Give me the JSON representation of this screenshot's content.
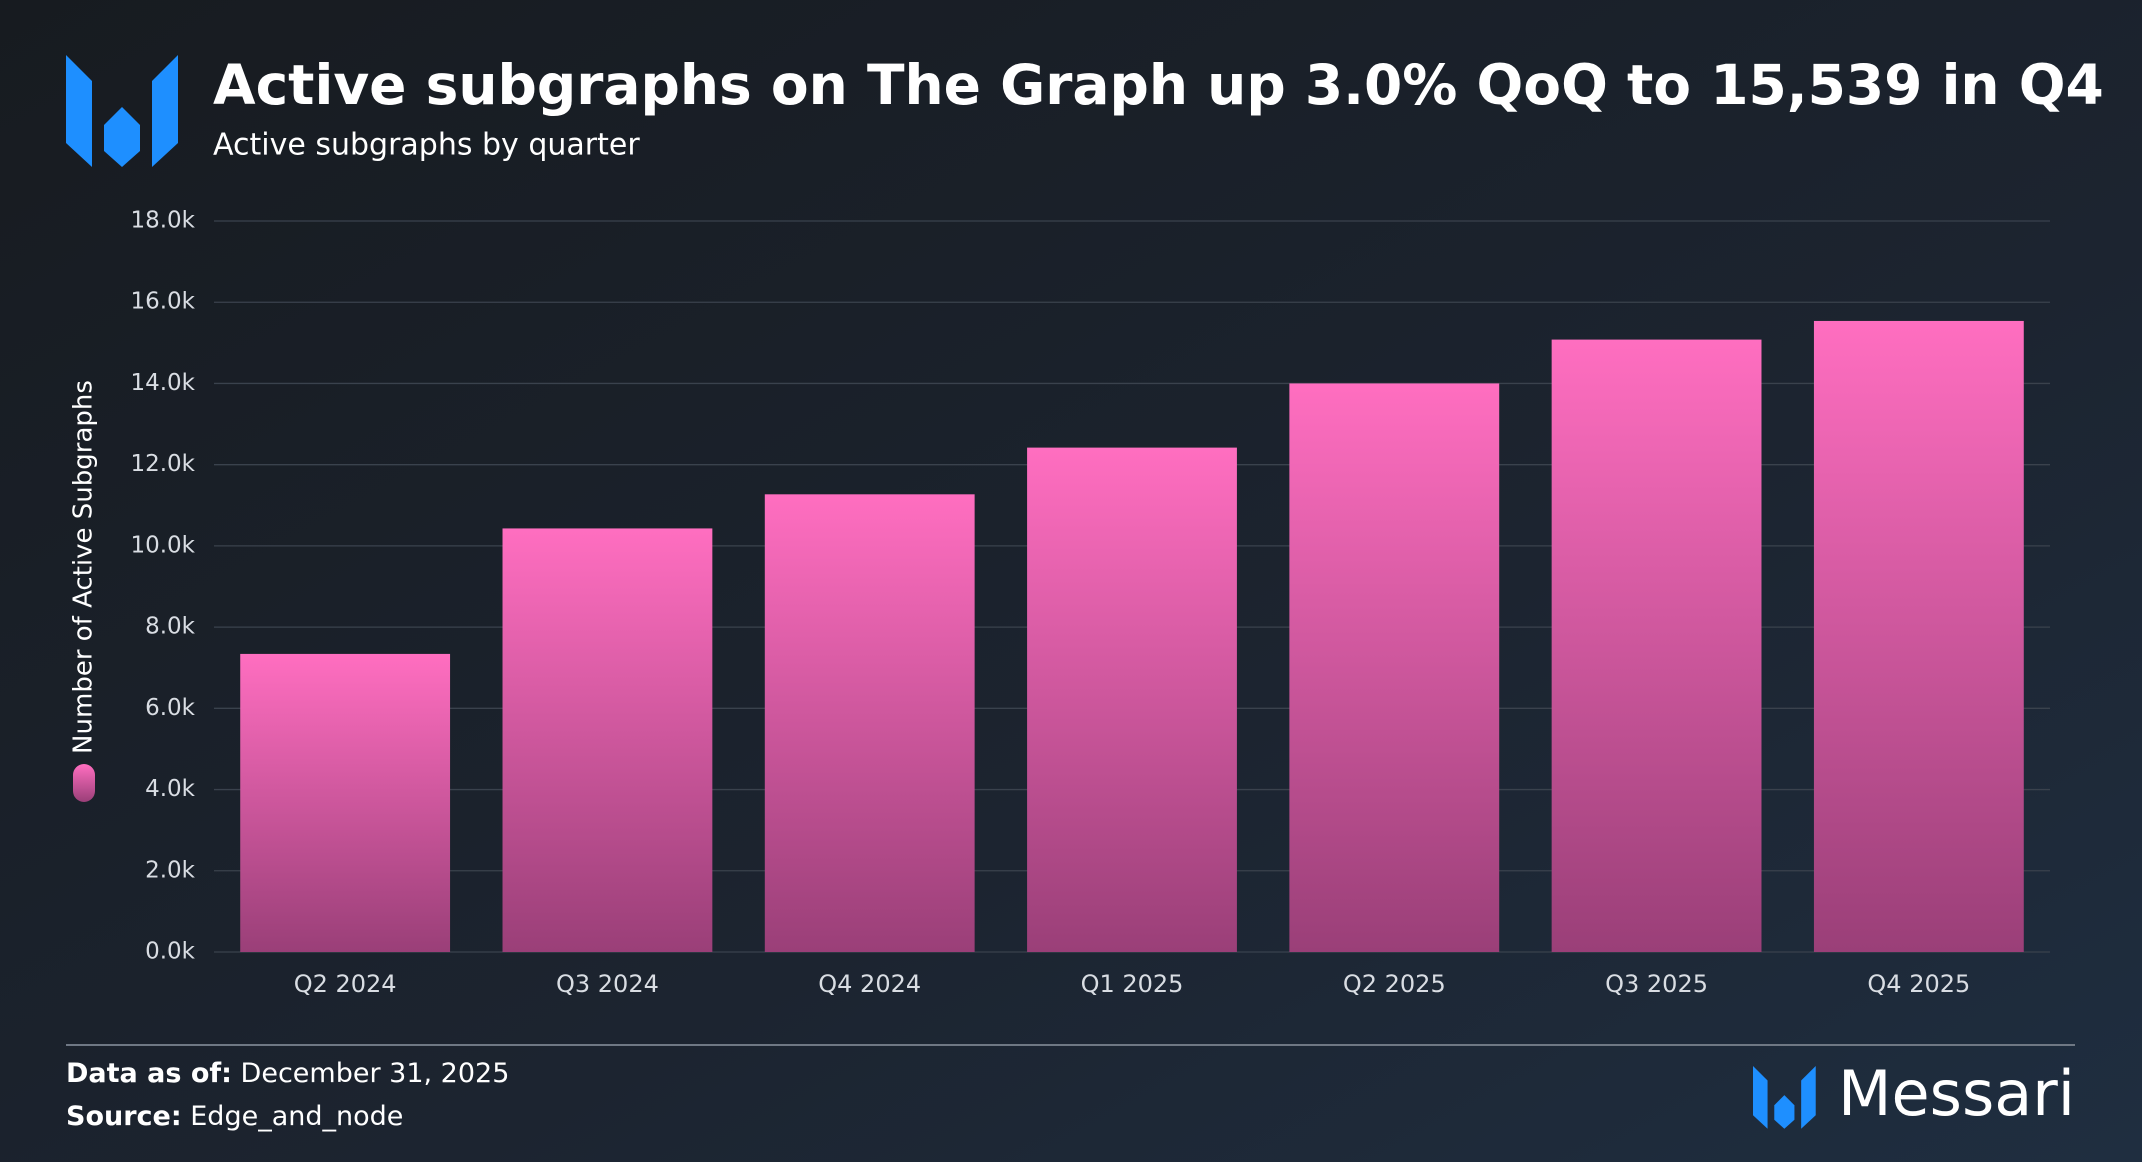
{
  "chart_data": {
    "type": "bar",
    "title": "Active subgraphs on The Graph up 3.0% QoQ to 15,539 in Q4",
    "subtitle": "Active subgraphs by quarter",
    "ylabel": "Number of Active Subgraphs",
    "categories": [
      "Q2 2024",
      "Q3 2024",
      "Q4 2024",
      "Q1 2025",
      "Q2 2025",
      "Q3 2025",
      "Q4 2025"
    ],
    "values": [
      7340,
      10430,
      11270,
      12420,
      14000,
      15080,
      15539
    ],
    "color": "#ff6ec0",
    "ylim": [
      0,
      18000
    ],
    "yticks": [
      {
        "value": 0,
        "label": "0.0k"
      },
      {
        "value": 2000,
        "label": "2.0k"
      },
      {
        "value": 4000,
        "label": "4.0k"
      },
      {
        "value": 6000,
        "label": "6.0k"
      },
      {
        "value": 8000,
        "label": "8.0k"
      },
      {
        "value": 10000,
        "label": "10.0k"
      },
      {
        "value": 12000,
        "label": "12.0k"
      },
      {
        "value": 14000,
        "label": "14.0k"
      },
      {
        "value": 16000,
        "label": "16.0k"
      },
      {
        "value": 18000,
        "label": "18.0k"
      }
    ],
    "grid": true
  },
  "footer": {
    "date_label": "Data as of:",
    "date": "December 31, 2025",
    "source_label": "Source:",
    "source": "Edge_and_node",
    "brand": "Messari"
  }
}
